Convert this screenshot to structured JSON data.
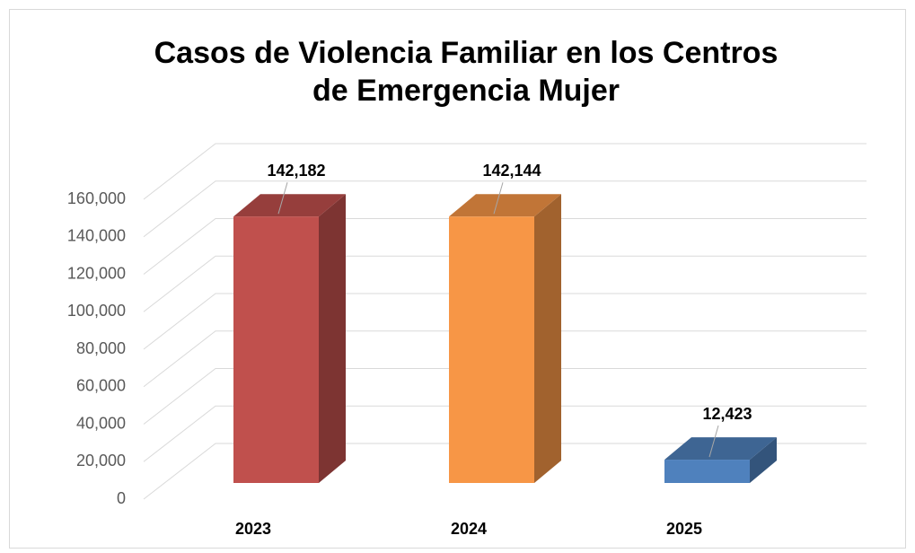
{
  "chart_data": {
    "type": "bar3d",
    "title": "Casos de Violencia Familiar en los Centros de Emergencia Mujer",
    "categories": [
      "2023",
      "2024",
      "2025"
    ],
    "values": [
      142182,
      142144,
      12423
    ],
    "value_labels": [
      "142,182",
      "142,144",
      "12,423"
    ],
    "colors": [
      "#c0504d",
      "#f79646",
      "#4f81bd"
    ],
    "ylim": [
      0,
      160000
    ],
    "yticks": [
      0,
      {
        "value": 20000,
        "label": "20,000"
      },
      {
        "value": 40000,
        "label": "40,000"
      },
      {
        "value": 60000,
        "label": "60,000"
      },
      {
        "value": 80000,
        "label": "80,000"
      },
      {
        "value": 100000,
        "label": "100,000"
      },
      {
        "value": 120000,
        "label": "120,000"
      },
      {
        "value": 140000,
        "label": "140,000"
      },
      {
        "value": 160000,
        "label": "160,000"
      }
    ],
    "grid": true
  }
}
